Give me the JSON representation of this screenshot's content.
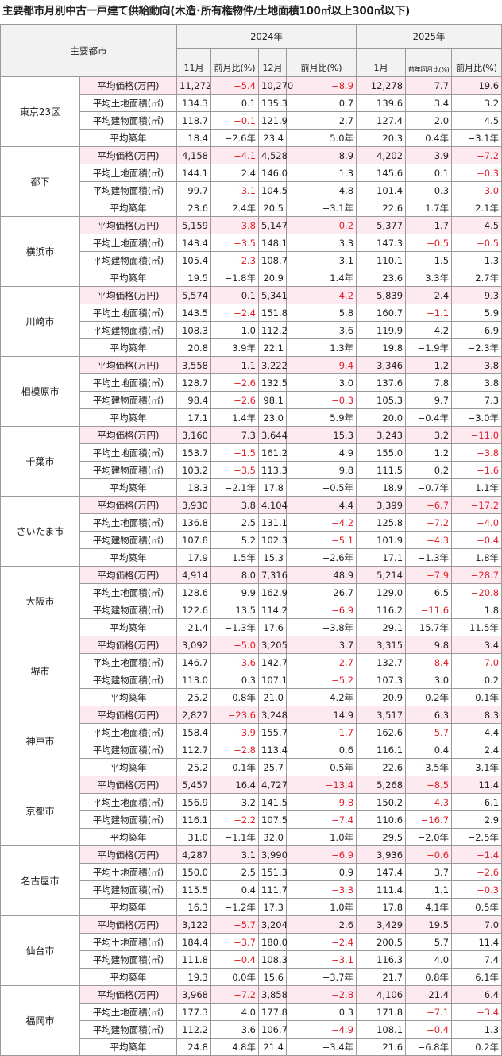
{
  "header": {
    "title": "主要都市月別中古一戸建て供給動向(木造･所有権物件/土地面積100㎡以上300㎡以下)"
  },
  "table": {
    "corner": "主要都市",
    "years": [
      "2024年",
      "2025年"
    ],
    "columns": [
      "11月",
      "前月比(%)",
      "12月",
      "前月比(%)",
      "1月",
      "前年同月比(%)",
      "前月比(%)"
    ],
    "metrics": [
      "平均価格(万円)",
      "平均土地面積(㎡)",
      "平均建物面積(㎡)",
      "平均築年"
    ],
    "cities": [
      {
        "name": "東京23区",
        "rows": [
          [
            "11,272",
            "−5.4",
            "10,270",
            "−8.9",
            "12,278",
            "7.7",
            "19.6"
          ],
          [
            "134.3",
            "0.1",
            "135.3",
            "0.7",
            "139.6",
            "3.4",
            "3.2"
          ],
          [
            "118.7",
            "−0.1",
            "121.9",
            "2.7",
            "127.4",
            "2.0",
            "4.5"
          ],
          [
            "18.4",
            "−2.6年",
            "23.4",
            "5.0年",
            "20.3",
            "0.4年",
            "−3.1年"
          ]
        ]
      },
      {
        "name": "都下",
        "rows": [
          [
            "4,158",
            "−4.1",
            "4,528",
            "8.9",
            "4,202",
            "3.9",
            "−7.2"
          ],
          [
            "144.1",
            "2.4",
            "146.0",
            "1.3",
            "145.6",
            "0.1",
            "−0.3"
          ],
          [
            "99.7",
            "−3.1",
            "104.5",
            "4.8",
            "101.4",
            "0.3",
            "−3.0"
          ],
          [
            "23.6",
            "2.4年",
            "20.5",
            "−3.1年",
            "22.6",
            "1.7年",
            "2.1年"
          ]
        ]
      },
      {
        "name": "横浜市",
        "rows": [
          [
            "5,159",
            "−3.8",
            "5,147",
            "−0.2",
            "5,377",
            "1.7",
            "4.5"
          ],
          [
            "143.4",
            "−3.5",
            "148.1",
            "3.3",
            "147.3",
            "−0.5",
            "−0.5"
          ],
          [
            "105.4",
            "−2.3",
            "108.7",
            "3.1",
            "110.1",
            "1.5",
            "1.3"
          ],
          [
            "19.5",
            "−1.8年",
            "20.9",
            "1.4年",
            "23.6",
            "3.3年",
            "2.7年"
          ]
        ]
      },
      {
        "name": "川崎市",
        "rows": [
          [
            "5,574",
            "0.1",
            "5,341",
            "−4.2",
            "5,839",
            "2.4",
            "9.3"
          ],
          [
            "143.5",
            "−2.4",
            "151.8",
            "5.8",
            "160.7",
            "−1.1",
            "5.9"
          ],
          [
            "108.3",
            "1.0",
            "112.2",
            "3.6",
            "119.9",
            "4.2",
            "6.9"
          ],
          [
            "20.8",
            "3.9年",
            "22.1",
            "1.3年",
            "19.8",
            "−1.9年",
            "−2.3年"
          ]
        ]
      },
      {
        "name": "相模原市",
        "rows": [
          [
            "3,558",
            "1.1",
            "3,222",
            "−9.4",
            "3,346",
            "1.2",
            "3.8"
          ],
          [
            "128.7",
            "−2.6",
            "132.5",
            "3.0",
            "137.6",
            "7.8",
            "3.8"
          ],
          [
            "98.4",
            "−2.6",
            "98.1",
            "−0.3",
            "105.3",
            "9.7",
            "7.3"
          ],
          [
            "17.1",
            "1.4年",
            "23.0",
            "5.9年",
            "20.0",
            "−0.4年",
            "−3.0年"
          ]
        ]
      },
      {
        "name": "千葉市",
        "rows": [
          [
            "3,160",
            "7.3",
            "3,644",
            "15.3",
            "3,243",
            "3.2",
            "−11.0"
          ],
          [
            "153.7",
            "−1.5",
            "161.2",
            "4.9",
            "155.0",
            "1.2",
            "−3.8"
          ],
          [
            "103.2",
            "−3.5",
            "113.3",
            "9.8",
            "111.5",
            "0.2",
            "−1.6"
          ],
          [
            "18.3",
            "−2.1年",
            "17.8",
            "−0.5年",
            "18.9",
            "−0.7年",
            "1.1年"
          ]
        ]
      },
      {
        "name": "さいたま市",
        "rows": [
          [
            "3,930",
            "3.8",
            "4,104",
            "4.4",
            "3,399",
            "−6.7",
            "−17.2"
          ],
          [
            "136.8",
            "2.5",
            "131.1",
            "−4.2",
            "125.8",
            "−7.2",
            "−4.0"
          ],
          [
            "107.8",
            "5.2",
            "102.3",
            "−5.1",
            "101.9",
            "−4.3",
            "−0.4"
          ],
          [
            "17.9",
            "1.5年",
            "15.3",
            "−2.6年",
            "17.1",
            "−1.3年",
            "1.8年"
          ]
        ]
      },
      {
        "name": "大阪市",
        "rows": [
          [
            "4,914",
            "8.0",
            "7,316",
            "48.9",
            "5,214",
            "−7.9",
            "−28.7"
          ],
          [
            "128.6",
            "9.9",
            "162.9",
            "26.7",
            "129.0",
            "6.5",
            "−20.8"
          ],
          [
            "122.6",
            "13.5",
            "114.2",
            "−6.9",
            "116.2",
            "−11.6",
            "1.8"
          ],
          [
            "21.4",
            "−1.3年",
            "17.6",
            "−3.8年",
            "29.1",
            "15.7年",
            "11.5年"
          ]
        ]
      },
      {
        "name": "堺市",
        "rows": [
          [
            "3,092",
            "−5.0",
            "3,205",
            "3.7",
            "3,315",
            "9.8",
            "3.4"
          ],
          [
            "146.7",
            "−3.6",
            "142.7",
            "−2.7",
            "132.7",
            "−8.4",
            "−7.0"
          ],
          [
            "113.0",
            "0.3",
            "107.1",
            "−5.2",
            "107.3",
            "3.0",
            "0.2"
          ],
          [
            "25.2",
            "0.8年",
            "21.0",
            "−4.2年",
            "20.9",
            "0.2年",
            "−0.1年"
          ]
        ]
      },
      {
        "name": "神戸市",
        "rows": [
          [
            "2,827",
            "−23.6",
            "3,248",
            "14.9",
            "3,517",
            "6.3",
            "8.3"
          ],
          [
            "158.4",
            "−3.9",
            "155.7",
            "−1.7",
            "162.6",
            "−5.7",
            "4.4"
          ],
          [
            "112.7",
            "−2.8",
            "113.4",
            "0.6",
            "116.1",
            "0.4",
            "2.4"
          ],
          [
            "25.2",
            "0.1年",
            "25.7",
            "0.5年",
            "22.6",
            "−3.5年",
            "−3.1年"
          ]
        ]
      },
      {
        "name": "京都市",
        "rows": [
          [
            "5,457",
            "16.4",
            "4,727",
            "−13.4",
            "5,268",
            "−8.5",
            "11.4"
          ],
          [
            "156.9",
            "3.2",
            "141.5",
            "−9.8",
            "150.2",
            "−4.3",
            "6.1"
          ],
          [
            "116.1",
            "−2.2",
            "107.5",
            "−7.4",
            "110.6",
            "−16.7",
            "2.9"
          ],
          [
            "31.0",
            "−1.1年",
            "32.0",
            "1.0年",
            "29.5",
            "−2.0年",
            "−2.5年"
          ]
        ]
      },
      {
        "name": "名古屋市",
        "rows": [
          [
            "4,287",
            "3.1",
            "3,990",
            "−6.9",
            "3,936",
            "−0.6",
            "−1.4"
          ],
          [
            "150.0",
            "2.5",
            "151.3",
            "0.9",
            "147.4",
            "3.7",
            "−2.6"
          ],
          [
            "115.5",
            "0.4",
            "111.7",
            "−3.3",
            "111.4",
            "1.1",
            "−0.3"
          ],
          [
            "16.3",
            "−1.2年",
            "17.3",
            "1.0年",
            "17.8",
            "4.1年",
            "0.5年"
          ]
        ]
      },
      {
        "name": "仙台市",
        "rows": [
          [
            "3,122",
            "−5.7",
            "3,204",
            "2.6",
            "3,429",
            "19.5",
            "7.0"
          ],
          [
            "184.4",
            "−3.7",
            "180.0",
            "−2.4",
            "200.5",
            "5.7",
            "11.4"
          ],
          [
            "111.8",
            "−0.4",
            "108.3",
            "−3.1",
            "116.3",
            "4.0",
            "7.4"
          ],
          [
            "19.3",
            "0.0年",
            "15.6",
            "−3.7年",
            "21.7",
            "0.8年",
            "6.1年"
          ]
        ]
      },
      {
        "name": "福岡市",
        "rows": [
          [
            "3,968",
            "−7.2",
            "3,858",
            "−2.8",
            "4,106",
            "21.4",
            "6.4"
          ],
          [
            "177.3",
            "4.0",
            "177.8",
            "0.3",
            "171.8",
            "−7.1",
            "−3.4"
          ],
          [
            "112.2",
            "3.6",
            "106.7",
            "−4.9",
            "108.1",
            "−0.4",
            "1.3"
          ],
          [
            "24.8",
            "4.8年",
            "21.4",
            "−3.4年",
            "21.6",
            "−6.8年",
            "0.2年"
          ]
        ]
      }
    ]
  }
}
